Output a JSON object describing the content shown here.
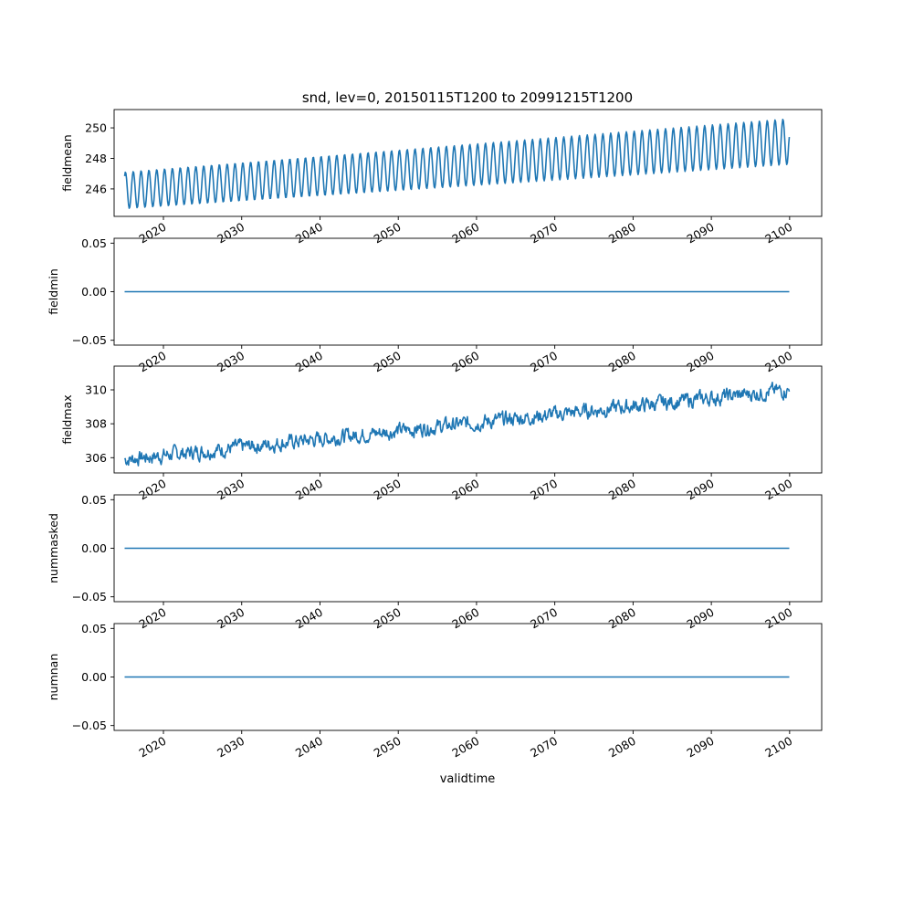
{
  "figure": {
    "title": "snd, lev=0, 20150115T1200 to 20991215T1200",
    "xlabel": "validtime",
    "x_ticks": [
      "2020",
      "2030",
      "2040",
      "2050",
      "2060",
      "2070",
      "2080",
      "2090",
      "2100"
    ],
    "line_color": "#1f77b4"
  },
  "chart_data": [
    {
      "type": "line",
      "ylabel": "fieldmean",
      "x_range": [
        "2015-01-15",
        "2099-12-15"
      ],
      "xlim": [
        2013.7,
        2104.1
      ],
      "ylim": [
        244.2,
        251.2
      ],
      "yticks": [
        246,
        248,
        250
      ],
      "ytick_labels": [
        "246",
        "248",
        "250"
      ],
      "series": [
        {
          "kind": "seasonal-cycle",
          "period_years": 1,
          "trend_start": [
            2015.04,
            245.9
          ],
          "trend_end": [
            2099.96,
            249.1
          ],
          "amplitude_start": 1.2,
          "amplitude_end": 1.5,
          "min_value": 244.5,
          "max_value": 250.8,
          "end_value": 249.4
        }
      ]
    },
    {
      "type": "line",
      "ylabel": "fieldmin",
      "x_range": [
        "2015-01-15",
        "2099-12-15"
      ],
      "xlim": [
        2013.7,
        2104.1
      ],
      "ylim": [
        -0.055,
        0.055
      ],
      "yticks": [
        -0.05,
        0.0,
        0.05
      ],
      "ytick_labels": [
        "−0.05",
        "0.00",
        "0.05"
      ],
      "series": [
        {
          "kind": "constant",
          "value": 0.0
        }
      ]
    },
    {
      "type": "line",
      "ylabel": "fieldmax",
      "x_range": [
        "2015-01-15",
        "2099-12-15"
      ],
      "xlim": [
        2013.7,
        2104.1
      ],
      "ylim": [
        305.1,
        311.4
      ],
      "yticks": [
        306,
        308,
        310
      ],
      "ytick_labels": [
        "306",
        "308",
        "310"
      ],
      "series": [
        {
          "kind": "noisy-trend",
          "trend_start": [
            2015.04,
            305.9
          ],
          "trend_end": [
            2099.96,
            310.0
          ],
          "noise": 0.35,
          "min_value": 305.4,
          "max_value": 311.2,
          "end_value": 309.9
        }
      ]
    },
    {
      "type": "line",
      "ylabel": "nummasked",
      "x_range": [
        "2015-01-15",
        "2099-12-15"
      ],
      "xlim": [
        2013.7,
        2104.1
      ],
      "ylim": [
        -0.055,
        0.055
      ],
      "yticks": [
        -0.05,
        0.0,
        0.05
      ],
      "ytick_labels": [
        "−0.05",
        "0.00",
        "0.05"
      ],
      "series": [
        {
          "kind": "constant",
          "value": 0.0
        }
      ]
    },
    {
      "type": "line",
      "ylabel": "numnan",
      "x_range": [
        "2015-01-15",
        "2099-12-15"
      ],
      "xlim": [
        2013.7,
        2104.1
      ],
      "ylim": [
        -0.055,
        0.055
      ],
      "yticks": [
        -0.05,
        0.0,
        0.05
      ],
      "ytick_labels": [
        "−0.05",
        "0.00",
        "0.05"
      ],
      "series": [
        {
          "kind": "constant",
          "value": 0.0
        }
      ]
    }
  ]
}
